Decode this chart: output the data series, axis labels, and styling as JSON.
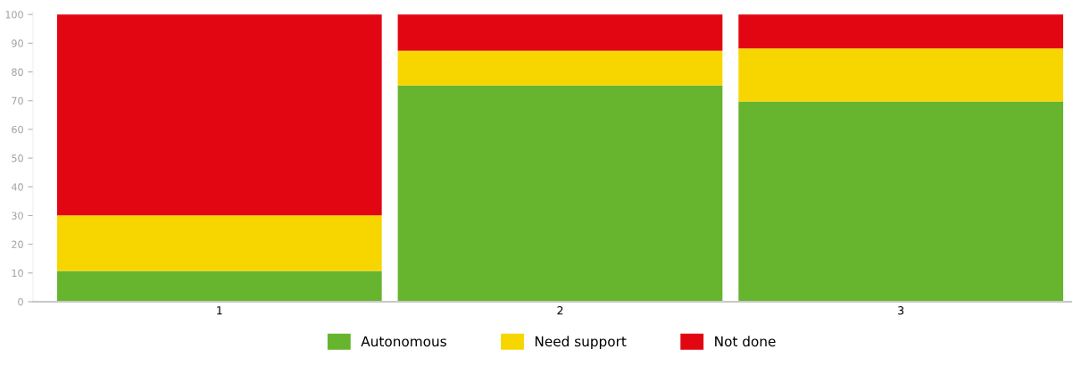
{
  "chart_data": {
    "type": "bar",
    "stacked": true,
    "categories": [
      "1",
      "2",
      "3"
    ],
    "series": [
      {
        "name": "Autonomous",
        "color": "#67b52f",
        "values": [
          10.7,
          75.3,
          69.7
        ]
      },
      {
        "name": "Need support",
        "color": "#f7d600",
        "values": [
          19.4,
          12.1,
          18.5
        ]
      },
      {
        "name": "Not done",
        "color": "#e20613",
        "values": [
          69.9,
          12.6,
          11.8
        ]
      }
    ],
    "ylim": [
      0,
      101
    ],
    "yticks": [
      0,
      10,
      20,
      30,
      40,
      50,
      60,
      70,
      80,
      90,
      100
    ],
    "grid": false,
    "legend": "bottom"
  }
}
